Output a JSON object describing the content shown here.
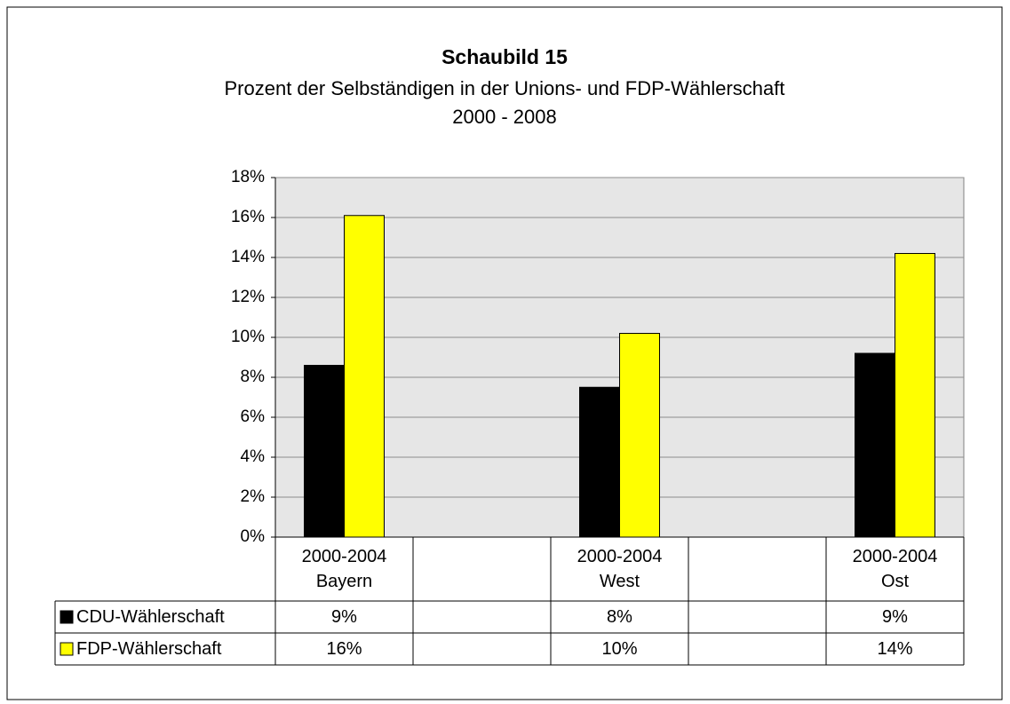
{
  "chart_data": {
    "type": "bar",
    "title": "Schaubild 15",
    "subtitle": [
      "Prozent der Selbständigen in der Unions- und FDP-Wählerschaft",
      "2000 - 2008"
    ],
    "categories": [
      "2000-2004\nBayern",
      null,
      "2000-2004\nWest",
      null,
      "2000-2004\nOst"
    ],
    "series": [
      {
        "name": "CDU-Wählerschaft",
        "color": "#000000",
        "values": [
          8.6,
          null,
          7.5,
          null,
          9.2
        ],
        "value_labels": [
          "9%",
          null,
          "8%",
          null,
          "9%"
        ]
      },
      {
        "name": "FDP-Wählerschaft",
        "color": "#ffff00",
        "values": [
          16.1,
          null,
          10.2,
          null,
          14.2
        ],
        "value_labels": [
          "16%",
          null,
          "10%",
          null,
          "14%"
        ]
      }
    ],
    "ylim": [
      0,
      18
    ],
    "yticks": [
      {
        "value": 0,
        "label": "0%"
      },
      {
        "value": 2,
        "label": "2%"
      },
      {
        "value": 4,
        "label": "4%"
      },
      {
        "value": 6,
        "label": "6%"
      },
      {
        "value": 8,
        "label": "8%"
      },
      {
        "value": 10,
        "label": "10%"
      },
      {
        "value": 12,
        "label": "12%"
      },
      {
        "value": 14,
        "label": "14%"
      },
      {
        "value": 16,
        "label": "16%"
      },
      {
        "value": 18,
        "label": "18%"
      }
    ],
    "grid": true,
    "legend": "data-table"
  }
}
